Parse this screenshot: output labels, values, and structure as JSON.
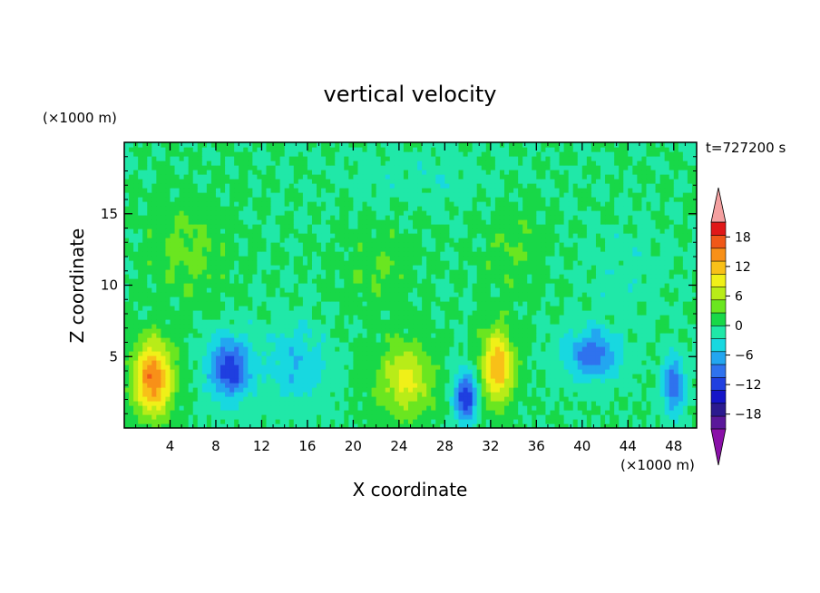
{
  "chart_data": {
    "type": "heatmap",
    "title": "vertical velocity",
    "xlabel": "X coordinate",
    "ylabel": "Z coordinate",
    "x_unit": "(×1000 m)",
    "y_unit": "(×1000 m)",
    "time_label": "t=727200 s",
    "xlim": [
      0,
      50
    ],
    "ylim": [
      0,
      20
    ],
    "x_ticks": [
      4,
      8,
      12,
      16,
      20,
      24,
      28,
      32,
      36,
      40,
      44,
      48
    ],
    "y_ticks": [
      5,
      10,
      15
    ],
    "grid": false,
    "colorbar": {
      "levels": [
        -21,
        -18,
        -15,
        -12,
        -9,
        -6,
        -3,
        0,
        3,
        6,
        9,
        12,
        15,
        18,
        21
      ],
      "labels": [
        18,
        12,
        6,
        0,
        -6,
        -12,
        -18
      ],
      "colors": [
        "#5a189a",
        "#2b1a8f",
        "#1515c8",
        "#1f3fe0",
        "#2f72ee",
        "#23a6f0",
        "#18d8e0",
        "#20e8a8",
        "#18d848",
        "#6ae620",
        "#b8ec18",
        "#f0f018",
        "#f8c018",
        "#f89018",
        "#f05818",
        "#e01818"
      ],
      "extend_high_color": "#f4a0a0",
      "extend_low_color": "#8a10a8"
    },
    "features": [
      {
        "x": 2.5,
        "z": 3.5,
        "peak": 18,
        "sx": 1.7,
        "sz": 2.6
      },
      {
        "x": 9.2,
        "z": 4.2,
        "peak": -14,
        "sx": 1.9,
        "sz": 2.2
      },
      {
        "x": 15.0,
        "z": 4.5,
        "peak": -6,
        "sx": 2.6,
        "sz": 2.8
      },
      {
        "x": 24.6,
        "z": 3.4,
        "peak": 10,
        "sx": 2.4,
        "sz": 2.6
      },
      {
        "x": 29.8,
        "z": 2.2,
        "peak": -15,
        "sx": 1.0,
        "sz": 1.8
      },
      {
        "x": 32.6,
        "z": 4.3,
        "peak": 15,
        "sx": 1.4,
        "sz": 2.6
      },
      {
        "x": 40.8,
        "z": 5.2,
        "peak": -11,
        "sx": 2.4,
        "sz": 1.8
      },
      {
        "x": 48.0,
        "z": 3.0,
        "peak": -12,
        "sx": 0.9,
        "sz": 2.0
      },
      {
        "x": 5.5,
        "z": 12.5,
        "peak": 4,
        "sx": 3.5,
        "sz": 3.5
      },
      {
        "x": 22.0,
        "z": 11.0,
        "peak": 3,
        "sx": 3.0,
        "sz": 3.0
      },
      {
        "x": 34.0,
        "z": 12.5,
        "peak": 3,
        "sx": 2.5,
        "sz": 3.0
      },
      {
        "x": 44.0,
        "z": 11.0,
        "peak": -2,
        "sx": 3.5,
        "sz": 3.0
      },
      {
        "x": 26.0,
        "z": 17.5,
        "peak": -2,
        "sx": 6.0,
        "sz": 2.0
      }
    ]
  }
}
